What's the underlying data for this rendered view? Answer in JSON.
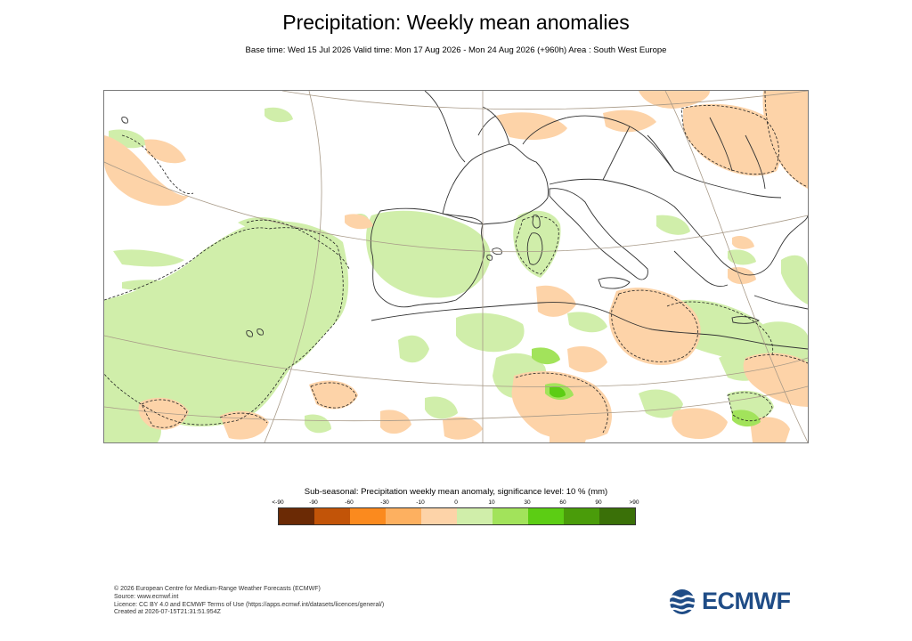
{
  "title": "Precipitation: Weekly mean anomalies",
  "subtitle": "Base time: Wed 15 Jul 2026 Valid time: Mon 17 Aug 2026 - Mon 24 Aug 2026 (+960h) Area : South West Europe",
  "legend": {
    "title": "Sub-seasonal: Precipitation weekly mean anomaly, significance level: 10 % (mm)",
    "ticks": [
      "<-90",
      "-90",
      "-60",
      "-30",
      "-10",
      "0",
      "10",
      "30",
      "60",
      "90",
      ">90"
    ],
    "colors": [
      "#6b2a05",
      "#c25408",
      "#fb8a1e",
      "#fdb060",
      "#fdd3a8",
      "#d0eeaa",
      "#a2e35b",
      "#5ccd14",
      "#4a9c0a",
      "#3a7008"
    ]
  },
  "footer": {
    "lines": [
      "© 2026 European Centre for Medium-Range Weather Forecasts (ECMWF)",
      "Source: www.ecmwf.int",
      "Licence: CC BY 4.0 and ECMWF Terms of Use (https://apps.ecmwf.int/datasets/licences/general/)",
      "Created at 2026-07-15T21:31:51.954Z"
    ]
  },
  "logo": {
    "text": "ECMWF",
    "color": "#1f4c86"
  },
  "map": {
    "land_outline_color": "#333333",
    "graticule_color": "#a89a88",
    "significance_contour": "dashed"
  }
}
